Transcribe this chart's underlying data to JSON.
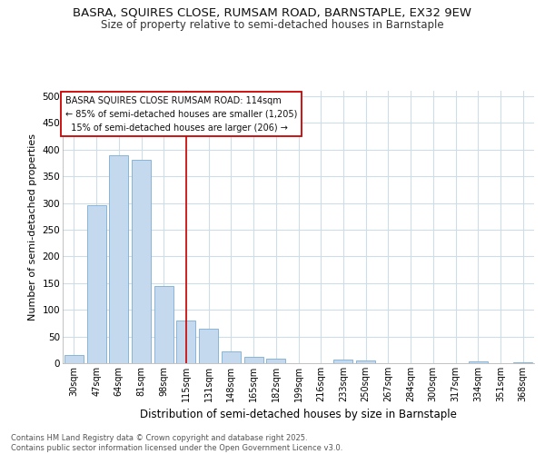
{
  "title_line1": "BASRA, SQUIRES CLOSE, RUMSAM ROAD, BARNSTAPLE, EX32 9EW",
  "title_line2": "Size of property relative to semi-detached houses in Barnstaple",
  "xlabel": "Distribution of semi-detached houses by size in Barnstaple",
  "ylabel": "Number of semi-detached properties",
  "categories": [
    "30sqm",
    "47sqm",
    "64sqm",
    "81sqm",
    "98sqm",
    "115sqm",
    "131sqm",
    "148sqm",
    "165sqm",
    "182sqm",
    "199sqm",
    "216sqm",
    "233sqm",
    "250sqm",
    "267sqm",
    "284sqm",
    "300sqm",
    "317sqm",
    "334sqm",
    "351sqm",
    "368sqm"
  ],
  "values": [
    15,
    295,
    390,
    380,
    145,
    80,
    65,
    22,
    12,
    8,
    0,
    0,
    6,
    5,
    0,
    0,
    0,
    0,
    4,
    0,
    2
  ],
  "bar_color": "#c5d9ee",
  "bar_edge_color": "#7aaed4",
  "vline_color": "#cc0000",
  "vline_x_index": 5,
  "annotation_line1": "BASRA SQUIRES CLOSE RUMSAM ROAD: 114sqm",
  "annotation_line2": "← 85% of semi-detached houses are smaller (1,205)",
  "annotation_line3": "  15% of semi-detached houses are larger (206) →",
  "annotation_box_facecolor": "#ffffff",
  "annotation_box_edgecolor": "#cc0000",
  "ylim_max": 510,
  "ytick_values": [
    0,
    50,
    100,
    150,
    200,
    250,
    300,
    350,
    400,
    450,
    500
  ],
  "bg_color": "#ffffff",
  "grid_color": "#d0dce8",
  "footer_text": "Contains HM Land Registry data © Crown copyright and database right 2025.\nContains public sector information licensed under the Open Government Licence v3.0."
}
